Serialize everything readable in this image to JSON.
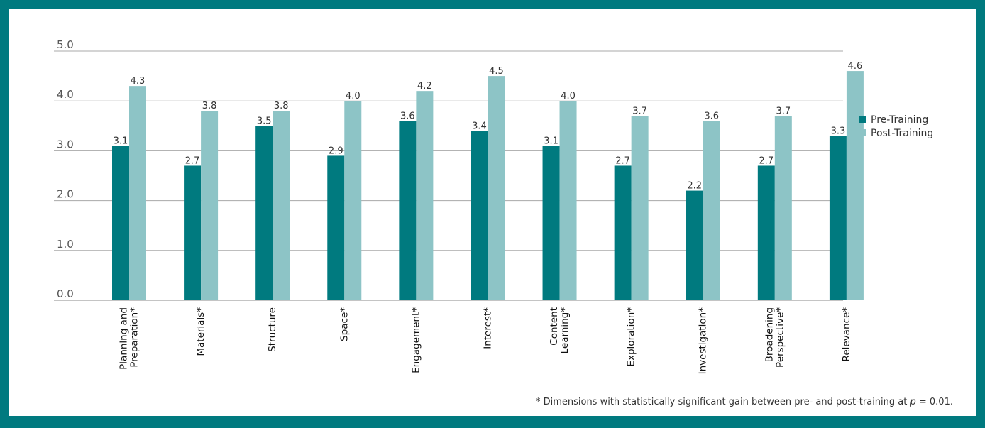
{
  "chart_data": {
    "type": "bar",
    "title": "",
    "xlabel": "",
    "ylabel": "",
    "ylim": [
      0,
      5
    ],
    "yticks": [
      "0.0",
      "1.0",
      "2.0",
      "3.0",
      "4.0",
      "5.0"
    ],
    "grid": true,
    "legend_position": "right",
    "categories": [
      [
        "Planning and",
        "Preparation*"
      ],
      [
        "Materials*"
      ],
      [
        "Structure"
      ],
      [
        "Space*"
      ],
      [
        "Engagement*"
      ],
      [
        "Interest*"
      ],
      [
        "Content",
        "Learning*"
      ],
      [
        "Exploration*"
      ],
      [
        "Investigation*"
      ],
      [
        "Broadening",
        "Perspective*"
      ],
      [
        "Relevance*"
      ]
    ],
    "series": [
      {
        "name": "Pre-Training",
        "color": "#007a7f",
        "values": [
          3.1,
          2.7,
          3.5,
          2.9,
          3.6,
          3.4,
          3.1,
          2.7,
          2.2,
          2.7,
          3.3
        ],
        "labels": [
          "3.1",
          "2.7",
          "3.5",
          "2.9",
          "3.6",
          "3.4",
          "3.1",
          "2.7",
          "2.2",
          "2.7",
          "3.3"
        ]
      },
      {
        "name": "Post-Training",
        "color": "#8dc4c6",
        "values": [
          4.3,
          3.8,
          3.8,
          4.0,
          4.2,
          4.5,
          4.0,
          3.7,
          3.6,
          3.7,
          4.6
        ],
        "labels": [
          "4.3",
          "3.8",
          "3.8",
          "4.0",
          "4.2",
          "4.5",
          "4.0",
          "3.7",
          "3.6",
          "3.7",
          "4.6"
        ]
      }
    ]
  },
  "footnote": {
    "prefix": "* Dimensions with statistically significant gain between pre- and post-training at ",
    "p": "p",
    "suffix": " = 0.01."
  }
}
